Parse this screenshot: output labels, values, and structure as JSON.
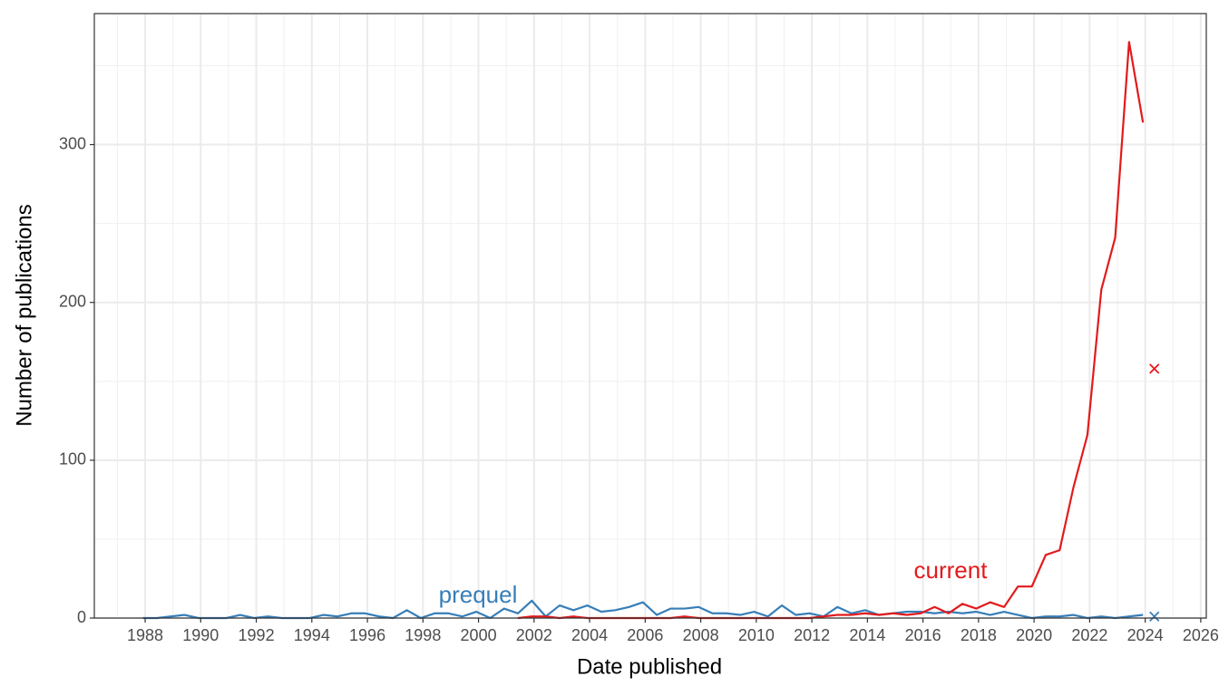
{
  "chart_data": {
    "type": "line",
    "x_label": "Date published",
    "y_label": "Number of publications",
    "xlim": [
      1986.17,
      2026.2
    ],
    "ylim": [
      0,
      383
    ],
    "xticks": [
      1988,
      1990,
      1992,
      1994,
      1996,
      1998,
      2000,
      2002,
      2004,
      2006,
      2008,
      2010,
      2012,
      2014,
      2016,
      2018,
      2020,
      2022,
      2024,
      2026
    ],
    "yticks": [
      0,
      100,
      200,
      300
    ],
    "grid": true,
    "x": [
      1987.92,
      1988.42,
      1988.92,
      1989.42,
      1989.92,
      1990.42,
      1990.92,
      1991.42,
      1991.92,
      1992.42,
      1992.92,
      1993.42,
      1993.92,
      1994.42,
      1994.92,
      1995.42,
      1995.92,
      1996.42,
      1996.92,
      1997.42,
      1997.92,
      1998.42,
      1998.92,
      1999.42,
      1999.92,
      2000.42,
      2000.92,
      2001.42,
      2001.92,
      2002.42,
      2002.92,
      2003.42,
      2003.92,
      2004.42,
      2004.92,
      2005.42,
      2005.92,
      2006.42,
      2006.92,
      2007.42,
      2007.92,
      2008.42,
      2008.92,
      2009.42,
      2009.92,
      2010.42,
      2010.92,
      2011.42,
      2011.92,
      2012.42,
      2012.92,
      2013.42,
      2013.92,
      2014.42,
      2014.92,
      2015.42,
      2015.92,
      2016.42,
      2016.92,
      2017.42,
      2017.92,
      2018.42,
      2018.92,
      2019.42,
      2019.92,
      2020.42,
      2020.92,
      2021.42,
      2021.92,
      2022.42,
      2022.92,
      2023.42,
      2023.92
    ],
    "series": [
      {
        "name": "prequel",
        "color": "#377eb8",
        "values": [
          0,
          0,
          1,
          2,
          0,
          0,
          0,
          2,
          0,
          1,
          0,
          0,
          0,
          2,
          1,
          3,
          3,
          1,
          0,
          5,
          0,
          3,
          3,
          1,
          4,
          0,
          6,
          3,
          11,
          1,
          8,
          5,
          8,
          4,
          5,
          7,
          10,
          2,
          6,
          6,
          7,
          3,
          3,
          2,
          4,
          1,
          8,
          2,
          3,
          1,
          7,
          3,
          5,
          2,
          3,
          4,
          4,
          3,
          4,
          3,
          4,
          2,
          4,
          2,
          0,
          1,
          1,
          2,
          0,
          1,
          0,
          1,
          2
        ],
        "marker_x": 2024.33,
        "marker_value": 1
      },
      {
        "name": "current",
        "color": "#e31a1c",
        "values": [
          null,
          null,
          null,
          null,
          null,
          null,
          null,
          null,
          null,
          null,
          null,
          null,
          null,
          null,
          null,
          null,
          null,
          null,
          null,
          null,
          null,
          null,
          null,
          null,
          null,
          null,
          null,
          0,
          1,
          1,
          0,
          1,
          0,
          0,
          0,
          0,
          0,
          0,
          0,
          1,
          0,
          0,
          0,
          0,
          0,
          0,
          0,
          0,
          0,
          1,
          2,
          2,
          3,
          2,
          3,
          2,
          3,
          7,
          3,
          9,
          6,
          10,
          7,
          20,
          20,
          40,
          43,
          83,
          116,
          208,
          241,
          365,
          314
        ],
        "marker_x": 2024.33,
        "marker_value": 158
      }
    ]
  }
}
